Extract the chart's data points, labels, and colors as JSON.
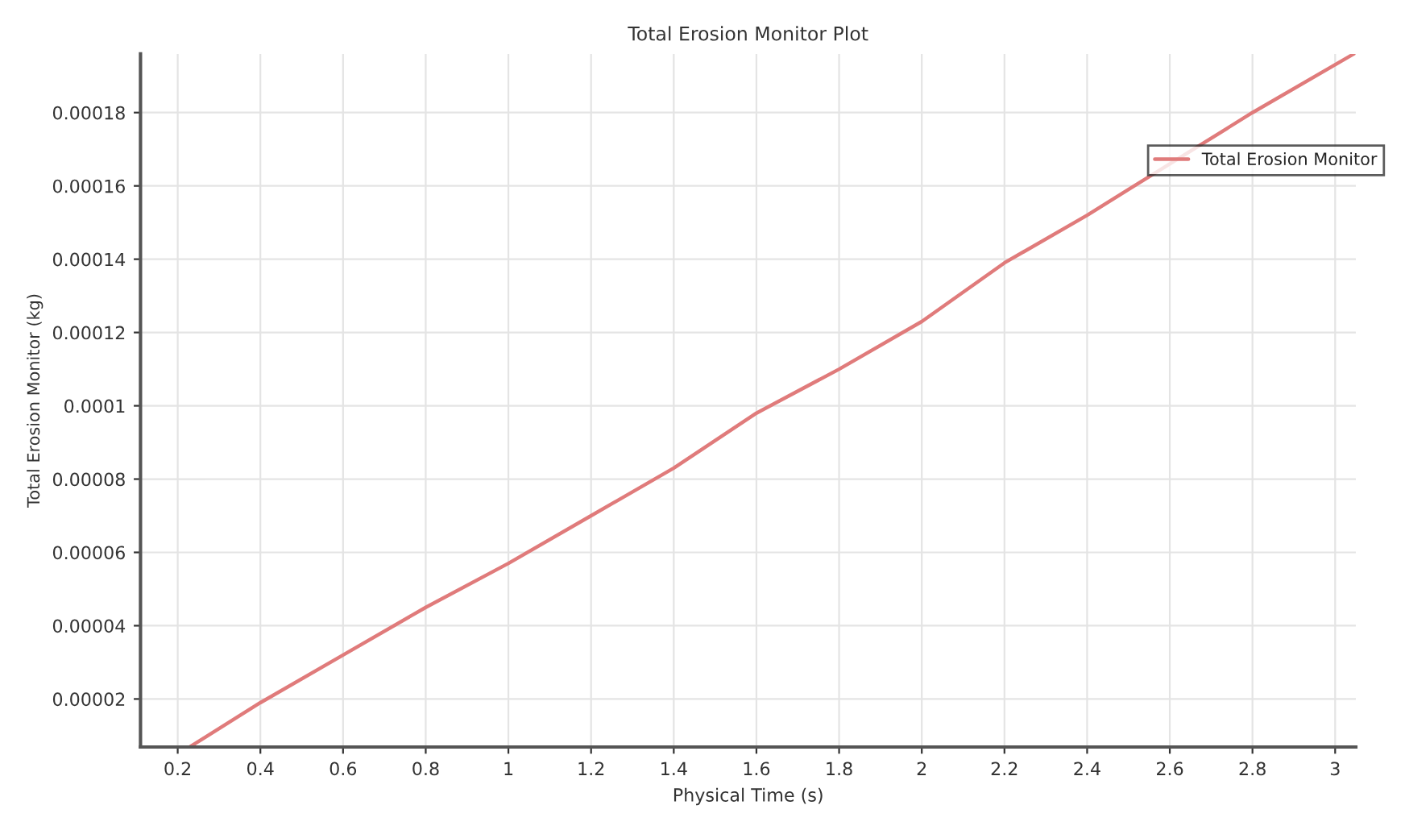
{
  "chart_data": {
    "type": "line",
    "title": "Total Erosion Monitor Plot",
    "xlabel": "Physical Time (s)",
    "ylabel": "Total Erosion Monitor (kg)",
    "x": [
      0.23,
      0.4,
      0.6,
      0.8,
      1.0,
      1.2,
      1.4,
      1.6,
      1.8,
      2.0,
      2.2,
      2.4,
      2.5,
      2.8,
      3.045
    ],
    "series": [
      {
        "name": "Total Erosion Monitor",
        "color": "#e07b7b",
        "values": [
          7e-06,
          1.9e-05,
          3.2e-05,
          4.5e-05,
          5.7e-05,
          7e-05,
          8.3e-05,
          9.8e-05,
          0.00011,
          0.000123,
          0.000139,
          0.000152,
          0.000159,
          0.00018,
          0.000196
        ]
      }
    ],
    "xlim": [
      0.11,
      3.05
    ],
    "ylim": [
      6.9e-06,
      0.000196
    ],
    "xticks": [
      0.2,
      0.4,
      0.6,
      0.8,
      1,
      1.2,
      1.4,
      1.6,
      1.8,
      2,
      2.2,
      2.4,
      2.6,
      2.8,
      3
    ],
    "yticks": [
      {
        "value": 2e-05,
        "label": "0.00002"
      },
      {
        "value": 4e-05,
        "label": "0.00004"
      },
      {
        "value": 6e-05,
        "label": "0.00006"
      },
      {
        "value": 8e-05,
        "label": "0.00008"
      },
      {
        "value": 0.0001,
        "label": "0.0001"
      },
      {
        "value": 0.00012,
        "label": "0.00012"
      },
      {
        "value": 0.00014,
        "label": "0.00014"
      },
      {
        "value": 0.00016,
        "label": "0.00016"
      },
      {
        "value": 0.00018,
        "label": "0.00018"
      }
    ],
    "grid": true,
    "legend": "top right",
    "line_style": "solid",
    "marker": "none"
  }
}
